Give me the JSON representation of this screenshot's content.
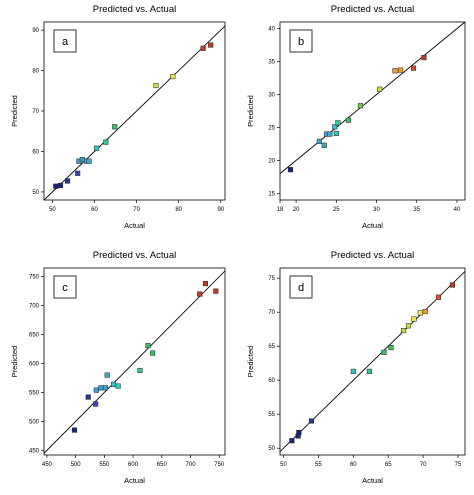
{
  "chart_data": [
    {
      "type": "scatter",
      "panel_label": "a",
      "title": "Predicted vs. Actual",
      "xlabel": "Actual",
      "ylabel": "Predicted",
      "xlim": [
        48,
        91
      ],
      "ylim": [
        48,
        92
      ],
      "xticks": [
        50,
        60,
        70,
        80,
        90
      ],
      "yticks": [
        50,
        60,
        70,
        80,
        90
      ],
      "reference_line": "y = x",
      "points": [
        {
          "x": 50.8,
          "y": 51.4,
          "color": "#1a237e"
        },
        {
          "x": 51.9,
          "y": 51.6,
          "color": "#1a237e"
        },
        {
          "x": 53.6,
          "y": 52.7,
          "color": "#283593"
        },
        {
          "x": 56.0,
          "y": 54.6,
          "color": "#3949ab"
        },
        {
          "x": 56.3,
          "y": 57.6,
          "color": "#3a9fd6"
        },
        {
          "x": 57.1,
          "y": 58.0,
          "color": "#3a9fd6"
        },
        {
          "x": 58.1,
          "y": 57.6,
          "color": "#3fa7c9"
        },
        {
          "x": 58.7,
          "y": 57.6,
          "color": "#3fa7c9"
        },
        {
          "x": 60.5,
          "y": 60.8,
          "color": "#33c6c6"
        },
        {
          "x": 62.7,
          "y": 62.3,
          "color": "#2ec4a0"
        },
        {
          "x": 64.8,
          "y": 66.1,
          "color": "#3cc066"
        },
        {
          "x": 74.6,
          "y": 76.3,
          "color": "#c6e044"
        },
        {
          "x": 78.6,
          "y": 78.5,
          "color": "#e8e64a"
        },
        {
          "x": 85.8,
          "y": 85.5,
          "color": "#c0392b"
        },
        {
          "x": 87.6,
          "y": 86.3,
          "color": "#c0392b"
        }
      ]
    },
    {
      "type": "scatter",
      "panel_label": "b",
      "title": "Predicted vs. Actual",
      "xlabel": "Actual",
      "ylabel": "Predicted",
      "xlim": [
        18,
        41
      ],
      "ylim": [
        14,
        41
      ],
      "xticks": [
        18,
        20,
        25,
        30,
        35,
        40
      ],
      "yticks": [
        15,
        20,
        25,
        30,
        35,
        40
      ],
      "reference_line": "y = x",
      "points": [
        {
          "x": 19.3,
          "y": 18.6,
          "color": "#1a237e"
        },
        {
          "x": 22.9,
          "y": 22.9,
          "color": "#3fa7c9"
        },
        {
          "x": 23.5,
          "y": 22.3,
          "color": "#3fa7c9"
        },
        {
          "x": 23.8,
          "y": 24.0,
          "color": "#3a9fd6"
        },
        {
          "x": 24.2,
          "y": 24.0,
          "color": "#3fa7c9"
        },
        {
          "x": 24.8,
          "y": 25.1,
          "color": "#33c6c6"
        },
        {
          "x": 25.0,
          "y": 24.1,
          "color": "#33c6c6"
        },
        {
          "x": 25.2,
          "y": 25.7,
          "color": "#2ec4a0"
        },
        {
          "x": 26.5,
          "y": 26.1,
          "color": "#3cc066"
        },
        {
          "x": 28.0,
          "y": 28.3,
          "color": "#6ccb4a"
        },
        {
          "x": 30.4,
          "y": 30.8,
          "color": "#c6e044"
        },
        {
          "x": 32.3,
          "y": 33.6,
          "color": "#f0a030"
        },
        {
          "x": 33.0,
          "y": 33.7,
          "color": "#f0a030"
        },
        {
          "x": 34.6,
          "y": 34.0,
          "color": "#d4512b"
        },
        {
          "x": 35.9,
          "y": 35.6,
          "color": "#c0392b"
        }
      ]
    },
    {
      "type": "scatter",
      "panel_label": "c",
      "title": "Predicted vs. Actual",
      "xlabel": "Actual",
      "ylabel": "Predicted",
      "xlim": [
        445,
        760
      ],
      "ylim": [
        442,
        765
      ],
      "xticks": [
        450,
        500,
        550,
        600,
        650,
        700,
        750
      ],
      "yticks": [
        450,
        500,
        550,
        600,
        650,
        700,
        750
      ],
      "reference_line": "y = x",
      "points": [
        {
          "x": 498,
          "y": 485,
          "color": "#1a237e"
        },
        {
          "x": 522,
          "y": 542,
          "color": "#283593"
        },
        {
          "x": 535,
          "y": 530,
          "color": "#3949ab"
        },
        {
          "x": 536,
          "y": 554,
          "color": "#3a9fd6"
        },
        {
          "x": 544,
          "y": 558,
          "color": "#3a9fd6"
        },
        {
          "x": 552,
          "y": 558,
          "color": "#3fa7c9"
        },
        {
          "x": 555,
          "y": 580,
          "color": "#3fa7c9"
        },
        {
          "x": 566,
          "y": 564,
          "color": "#33c6c6"
        },
        {
          "x": 574,
          "y": 561,
          "color": "#33c6c6"
        },
        {
          "x": 612,
          "y": 588,
          "color": "#2ec4a0"
        },
        {
          "x": 626,
          "y": 631,
          "color": "#3cc066"
        },
        {
          "x": 634,
          "y": 618,
          "color": "#3cc066"
        },
        {
          "x": 716,
          "y": 720,
          "color": "#c0392b"
        },
        {
          "x": 726,
          "y": 738,
          "color": "#c0392b"
        },
        {
          "x": 744,
          "y": 725,
          "color": "#c0392b"
        }
      ]
    },
    {
      "type": "scatter",
      "panel_label": "d",
      "title": "Predicted vs. Actual",
      "xlabel": "Actual",
      "ylabel": "Predicted",
      "xlim": [
        49.5,
        76
      ],
      "ylim": [
        49,
        76.5
      ],
      "xticks": [
        50,
        55,
        60,
        65,
        70,
        75
      ],
      "yticks": [
        50,
        55,
        60,
        65,
        70,
        75
      ],
      "reference_line": "y = x",
      "points": [
        {
          "x": 51.2,
          "y": 51.1,
          "color": "#1a237e"
        },
        {
          "x": 52.1,
          "y": 51.8,
          "color": "#1a237e"
        },
        {
          "x": 52.2,
          "y": 52.3,
          "color": "#1a237e"
        },
        {
          "x": 54.0,
          "y": 54.0,
          "color": "#283593"
        },
        {
          "x": 60.0,
          "y": 61.3,
          "color": "#33c6c6"
        },
        {
          "x": 62.3,
          "y": 61.3,
          "color": "#2ec4a0"
        },
        {
          "x": 64.4,
          "y": 64.1,
          "color": "#3cc066"
        },
        {
          "x": 65.4,
          "y": 64.8,
          "color": "#3cc066"
        },
        {
          "x": 67.2,
          "y": 67.3,
          "color": "#c6e044"
        },
        {
          "x": 67.9,
          "y": 68.0,
          "color": "#c6e044"
        },
        {
          "x": 68.7,
          "y": 69.0,
          "color": "#e8e64a"
        },
        {
          "x": 69.6,
          "y": 69.9,
          "color": "#e8e64a"
        },
        {
          "x": 70.3,
          "y": 70.1,
          "color": "#f0a030"
        },
        {
          "x": 72.2,
          "y": 72.2,
          "color": "#d4512b"
        },
        {
          "x": 74.2,
          "y": 74.0,
          "color": "#c0392b"
        }
      ]
    }
  ]
}
